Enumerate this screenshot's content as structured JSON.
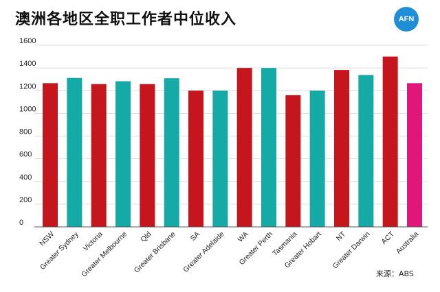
{
  "header": {
    "title": "澳洲各地区全职工作者中位收入",
    "logo_text": "AFN"
  },
  "footer": {
    "source": "来源：ABS"
  },
  "colors": {
    "state": "#c4161c",
    "city": "#16aaa7",
    "national": "#e0167a",
    "logo": "#1e8fd6"
  },
  "chart_data": {
    "type": "bar",
    "title": "澳洲各地区全职工作者中位收入",
    "xlabel": "",
    "ylabel": "",
    "ylim": [
      0,
      1600
    ],
    "yticks": [
      "0",
      "200",
      "400",
      "600",
      "800",
      "1000",
      "1200",
      "1400",
      "1600"
    ],
    "grid": true,
    "legend": "none",
    "categories": [
      "NSW",
      "Greater Sydney",
      "Victoria",
      "Greater Melbourne",
      "Qld",
      "Greater Brisbane",
      "SA",
      "Greater Adelaide",
      "WA",
      "Greater Perth",
      "Tasmania",
      "Greater Hobart",
      "NT",
      "Greater Darwin",
      "ACT",
      "Australia"
    ],
    "values": [
      1266,
      1312,
      1258,
      1283,
      1258,
      1309,
      1200,
      1200,
      1400,
      1400,
      1160,
      1200,
      1382,
      1338,
      1500,
      1266
    ],
    "bar_colors": [
      "state",
      "city",
      "state",
      "city",
      "state",
      "city",
      "state",
      "city",
      "state",
      "city",
      "state",
      "city",
      "state",
      "city",
      "state",
      "national"
    ]
  }
}
